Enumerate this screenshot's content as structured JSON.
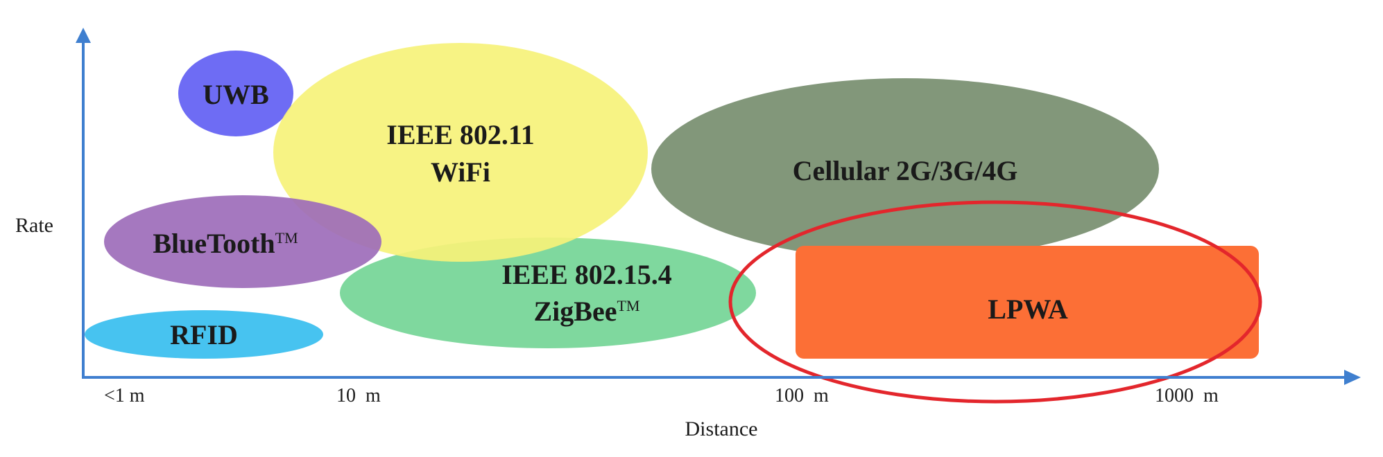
{
  "axes": {
    "y_label": "Rate",
    "x_label": "Distance",
    "x_ticks": [
      "<1 m",
      "10  m",
      "100  m",
      "1000  m"
    ]
  },
  "technologies": {
    "uwb": {
      "label": "UWB",
      "color": "#6e6cf4"
    },
    "wifi": {
      "line1": "IEEE 802.11",
      "line2": "WiFi",
      "color": "#f6f27a"
    },
    "cellular": {
      "label": "Cellular 2G/3G/4G",
      "color": "#82977a"
    },
    "bluetooth": {
      "label": "BlueTooth",
      "tm": "TM",
      "color": "#9d6dba"
    },
    "zigbee": {
      "line1": "IEEE 802.15.4",
      "line2": "ZigBee",
      "tm": "TM",
      "color": "#7fd89e"
    },
    "lpwa": {
      "label": "LPWA",
      "color": "#fc6f36"
    },
    "rfid": {
      "label": "RFID",
      "color": "#47c3f0"
    }
  },
  "colors": {
    "axis": "#3f7fcf",
    "highlight_ring": "#e3262c"
  }
}
